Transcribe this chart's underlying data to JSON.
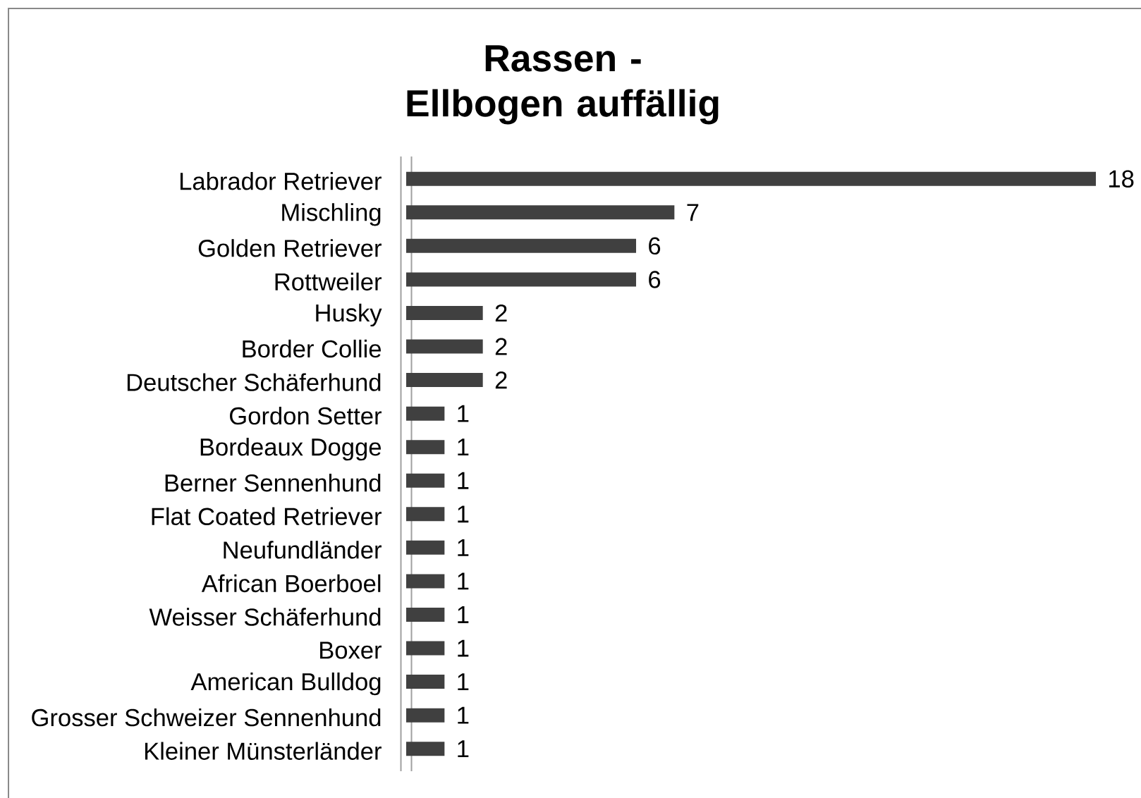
{
  "chart_data": {
    "type": "bar",
    "orientation": "horizontal",
    "title": "Rassen - Ellbogen auffällig",
    "categories": [
      "Labrador Retriever",
      "Mischling",
      "Golden Retriever",
      "Rottweiler",
      "Husky",
      "Border Collie",
      "Deutscher Schäferhund",
      "Gordon Setter",
      "Bordeaux Dogge",
      "Berner Sennenhund",
      "Flat Coated Retriever",
      "Neufundländer",
      "African Boerboel",
      "Weisser Schäferhund",
      "Boxer",
      "American Bulldog",
      "Grosser Schweizer Sennenhund",
      "Kleiner Münsterländer"
    ],
    "values": [
      18,
      7,
      6,
      6,
      2,
      2,
      2,
      1,
      1,
      1,
      1,
      1,
      1,
      1,
      1,
      1,
      1,
      1
    ],
    "color": "#404040",
    "data_labels": true,
    "tick_labels": "y"
  }
}
